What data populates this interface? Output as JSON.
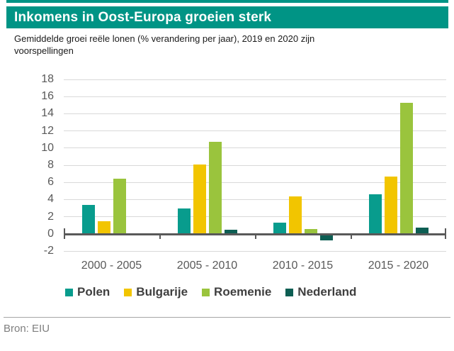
{
  "header": {
    "title": "Inkomens in Oost-Europa groeien sterk",
    "subtitle": "Gemiddelde groei reële lonen (% verandering per jaar), 2019 en 2020 zijn voorspellingen"
  },
  "source": {
    "label": "Bron: EIU"
  },
  "colors": {
    "accent_teal": "#009485",
    "polen": "#089c8d",
    "bulgarije": "#f2c500",
    "roemenie": "#9ac43d",
    "nederland": "#0d5e53",
    "gridline": "#d9d9d9",
    "axis": "#595959",
    "label_gray": "#595959",
    "legend_text": "#3f3f3f",
    "source_text": "#7f7f7f"
  },
  "chart_data": {
    "type": "bar",
    "title": "Inkomens in Oost-Europa groeien sterk",
    "subtitle": "Gemiddelde groei reële lonen (% verandering per jaar), 2019 en 2020 zijn voorspellingen",
    "categories": [
      "2000 - 2005",
      "2005 - 2010",
      "2010 - 2015",
      "2015 - 2020"
    ],
    "series": [
      {
        "name": "Polen",
        "color": "#089c8d",
        "values": [
          3.4,
          3.0,
          1.3,
          4.6
        ]
      },
      {
        "name": "Bulgarije",
        "color": "#f2c500",
        "values": [
          1.5,
          8.1,
          4.4,
          6.7
        ]
      },
      {
        "name": "Roemenie",
        "color": "#9ac43d",
        "values": [
          6.4,
          10.7,
          0.6,
          15.3
        ]
      },
      {
        "name": "Nederland",
        "color": "#0d5e53",
        "values": [
          0.1,
          0.5,
          -0.6,
          0.7
        ]
      }
    ],
    "xlabel": "",
    "ylabel": "",
    "ylim": [
      -2,
      18
    ],
    "ytick_step": 2,
    "grid": true,
    "legend_position": "bottom"
  }
}
